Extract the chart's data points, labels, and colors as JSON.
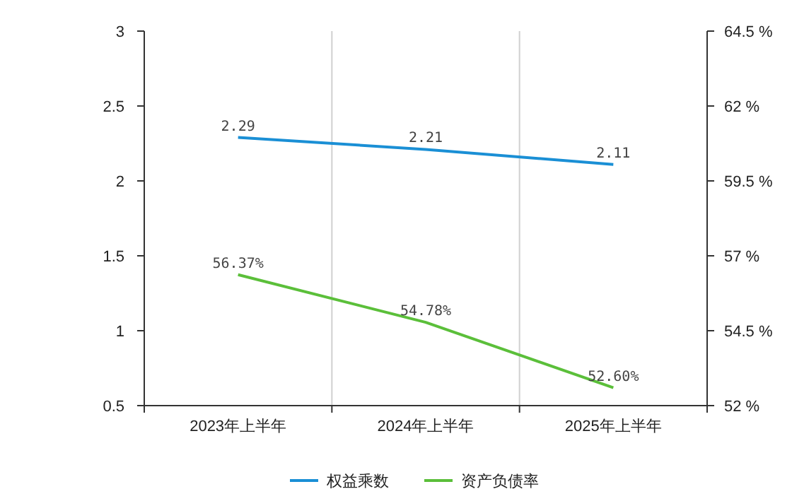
{
  "chart_data": {
    "type": "line",
    "categories": [
      "2023年上半年",
      "2024年上半年",
      "2025年上半年"
    ],
    "series": [
      {
        "name": "权益乘数",
        "color": "#1a8fd5",
        "values": [
          2.29,
          2.21,
          2.11
        ],
        "value_labels": [
          "2.29",
          "2.21",
          "2.11"
        ]
      },
      {
        "name": "资产负债率",
        "color": "#5bbf3a",
        "axis": "y2",
        "values": [
          56.37,
          54.78,
          52.6
        ],
        "value_labels": [
          "56.37%",
          "54.78%",
          "52.60%"
        ]
      }
    ],
    "ylim": [
      0.5,
      3
    ],
    "yticks": [
      0.5,
      1,
      1.5,
      2,
      2.5,
      3
    ],
    "y2lim": [
      52,
      64.5
    ],
    "y2ticks": [
      {
        "value": 52,
        "label": "52 %"
      },
      {
        "value": 54.5,
        "label": "54.5 %"
      },
      {
        "value": 57,
        "label": "57 %"
      },
      {
        "value": 59.5,
        "label": "59.5 %"
      },
      {
        "value": 62,
        "label": "62 %"
      },
      {
        "value": 64.5,
        "label": "64.5 %"
      }
    ],
    "grid": "x",
    "legend": "bottom",
    "marker": "none",
    "line_style": "solid"
  }
}
